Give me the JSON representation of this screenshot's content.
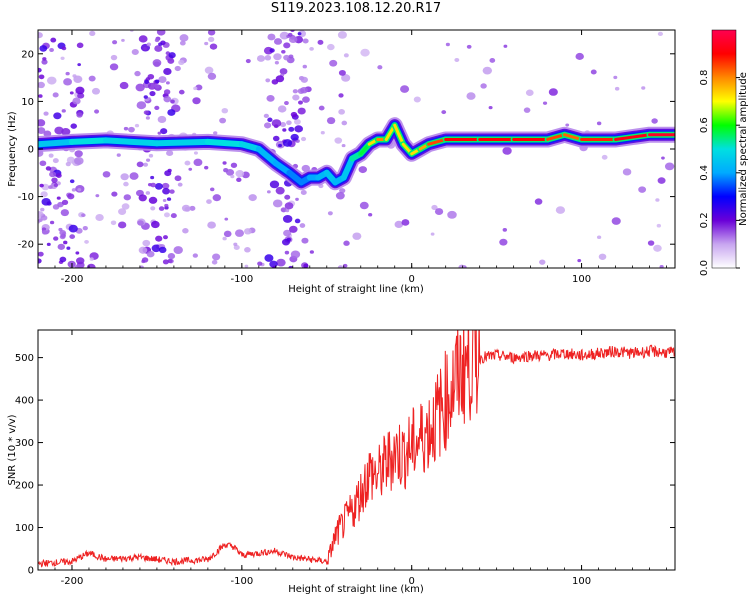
{
  "title": "S119.2023.108.12.20.R17",
  "chart_data": [
    {
      "type": "heatmap",
      "title": "S119.2023.108.12.20.R17",
      "xlabel": "Height of straight line (km)",
      "ylabel": "Frequency (Hz)",
      "xlim": [
        -220,
        155
      ],
      "ylim": [
        -25,
        25
      ],
      "xticks": [
        -200,
        -100,
        0,
        100
      ],
      "yticks": [
        -20,
        -10,
        0,
        10,
        20
      ],
      "colorbar": {
        "label": "Normalized spectral amplitude",
        "range": [
          0,
          1
        ],
        "ticks": [
          "0.0",
          "0.2",
          "0.4",
          "0.6",
          "0.8"
        ],
        "colors": [
          "#ffffff",
          "#c8a6f0",
          "#6a00d8",
          "#0000ff",
          "#00aaff",
          "#00e0e0",
          "#00ff00",
          "#ffff00",
          "#ff8800",
          "#ff0000",
          "#ff0050"
        ]
      },
      "ridge": {
        "x": [
          -220,
          -200,
          -180,
          -150,
          -120,
          -100,
          -90,
          -80,
          -72,
          -65,
          -60,
          -55,
          -50,
          -45,
          -40,
          -35,
          -30,
          -25,
          -20,
          -15,
          -10,
          -5,
          0,
          5,
          10,
          20,
          40,
          60,
          80,
          90,
          100,
          120,
          140,
          155
        ],
        "frequency": [
          1,
          1.5,
          1.8,
          1.2,
          1.5,
          1,
          0,
          -3,
          -5,
          -7,
          -6,
          -6,
          -5,
          -7,
          -6,
          -2,
          -1,
          1,
          2,
          2,
          5,
          1,
          -1,
          0,
          1,
          2,
          2,
          2,
          2,
          3,
          2,
          2,
          3,
          3
        ],
        "amplitude": [
          0.4,
          0.5,
          0.5,
          0.45,
          0.5,
          0.5,
          0.45,
          0.4,
          0.4,
          0.35,
          0.4,
          0.4,
          0.45,
          0.45,
          0.4,
          0.5,
          0.55,
          0.6,
          0.85,
          0.75,
          0.7,
          0.75,
          0.7,
          0.75,
          0.8,
          0.9,
          0.9,
          0.9,
          0.9,
          0.8,
          0.85,
          0.9,
          0.95,
          0.95
        ]
      },
      "noise_bands_x": [
        [
          -220,
          -195
        ],
        [
          -160,
          -140
        ],
        [
          -85,
          -62
        ]
      ]
    },
    {
      "type": "line",
      "xlabel": "Height of straight line (km)",
      "ylabel": "SNR (10 * v/v)",
      "xlim": [
        -220,
        155
      ],
      "ylim": [
        0,
        565
      ],
      "xticks": [
        -200,
        -100,
        0,
        100
      ],
      "yticks": [
        0,
        100,
        200,
        300,
        400,
        500
      ],
      "color": "#ee2222",
      "series": [
        {
          "x": [
            -220,
            -200,
            -190,
            -180,
            -160,
            -140,
            -120,
            -110,
            -105,
            -100,
            -90,
            -80,
            -70,
            -60,
            -50,
            -48,
            -45,
            -40,
            -35,
            -30,
            -25,
            -20,
            -15,
            -10,
            -5,
            0,
            5,
            10,
            15,
            20,
            25,
            30,
            35,
            40,
            50,
            60,
            70,
            80,
            90,
            100,
            110,
            120,
            130,
            140,
            150,
            155
          ],
          "y": [
            15,
            20,
            40,
            25,
            30,
            20,
            25,
            60,
            55,
            35,
            40,
            45,
            30,
            25,
            20,
            40,
            80,
            110,
            140,
            180,
            230,
            220,
            250,
            280,
            270,
            290,
            310,
            330,
            360,
            400,
            440,
            480,
            495,
            500,
            505,
            500,
            505,
            505,
            510,
            505,
            510,
            515,
            510,
            515,
            512,
            510
          ]
        }
      ]
    }
  ]
}
